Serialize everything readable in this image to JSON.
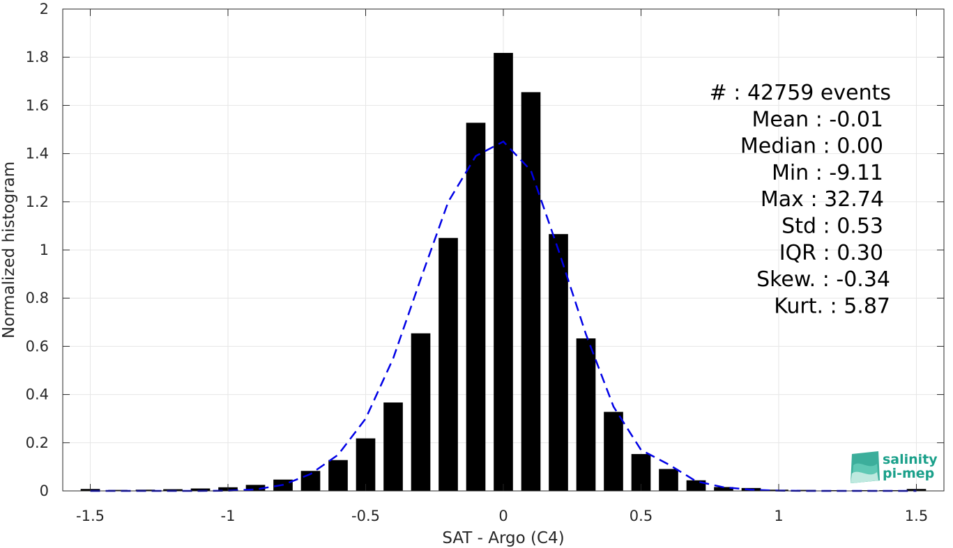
{
  "chart_data": {
    "type": "bar",
    "xlabel": "SAT - Argo (C4)",
    "ylabel": "Normalized histogram",
    "xlim": [
      -1.6,
      1.6
    ],
    "ylim": [
      0,
      2
    ],
    "x_ticks": [
      -1.5,
      -1,
      -0.5,
      0,
      0.5,
      1,
      1.5
    ],
    "x_tick_labels": [
      "-1.5",
      "-1",
      "-0.5",
      "0",
      "0.5",
      "1",
      "1.5"
    ],
    "y_ticks": [
      0,
      0.2,
      0.4,
      0.6,
      0.8,
      1,
      1.2,
      1.4,
      1.6,
      1.8,
      2
    ],
    "y_tick_labels": [
      "0",
      "0.2",
      "0.4",
      "0.6",
      "0.8",
      "1",
      "1.2",
      "1.4",
      "1.6",
      "1.8",
      "2"
    ],
    "grid": true,
    "bar_color": "#000000",
    "bar_width": 0.07,
    "bars": {
      "x": [
        -1.5,
        -1.4,
        -1.3,
        -1.2,
        -1.1,
        -1.0,
        -0.9,
        -0.8,
        -0.7,
        -0.6,
        -0.5,
        -0.4,
        -0.3,
        -0.2,
        -0.1,
        0.0,
        0.1,
        0.2,
        0.3,
        0.4,
        0.5,
        0.6,
        0.7,
        0.8,
        0.9,
        1.0,
        1.1,
        1.2,
        1.3,
        1.4,
        1.5
      ],
      "values": [
        0.008,
        0.004,
        0.005,
        0.007,
        0.01,
        0.015,
        0.025,
        0.047,
        0.083,
        0.128,
        0.218,
        0.367,
        0.654,
        1.05,
        1.528,
        1.818,
        1.655,
        1.066,
        0.633,
        0.328,
        0.153,
        0.091,
        0.044,
        0.016,
        0.012,
        0.005,
        0.004,
        0.003,
        0.003,
        0.003,
        0.008
      ]
    },
    "fit_line": {
      "style": "dashed",
      "color": "#0000e6",
      "x": [
        -1.5,
        -1.4,
        -1.3,
        -1.2,
        -1.1,
        -1.0,
        -0.9,
        -0.8,
        -0.7,
        -0.6,
        -0.5,
        -0.4,
        -0.3,
        -0.2,
        -0.1,
        0.0,
        0.1,
        0.2,
        0.3,
        0.4,
        0.5,
        0.6,
        0.7,
        0.8,
        0.9,
        1.0,
        1.1,
        1.2,
        1.3,
        1.4,
        1.5
      ],
      "values": [
        0.0,
        0.0,
        0.0,
        0.0,
        0.0,
        0.001,
        0.006,
        0.025,
        0.07,
        0.15,
        0.3,
        0.55,
        0.88,
        1.2,
        1.39,
        1.45,
        1.33,
        1.0,
        0.65,
        0.35,
        0.17,
        0.11,
        0.04,
        0.015,
        0.005,
        0.001,
        0.0,
        0.0,
        0.0,
        0.0,
        0.0
      ]
    },
    "stats_lines": [
      "#  : 42759 events",
      "Mean : -0.01",
      "Median : 0.00",
      "Min : -9.11",
      "Max : 32.74",
      "Std : 0.53",
      "IQR : 0.30",
      "Skew. : -0.34",
      "Kurt. : 5.87"
    ]
  },
  "logo": {
    "line1": "salinity",
    "line2": "pi-mep",
    "color": "#1aa08a"
  }
}
